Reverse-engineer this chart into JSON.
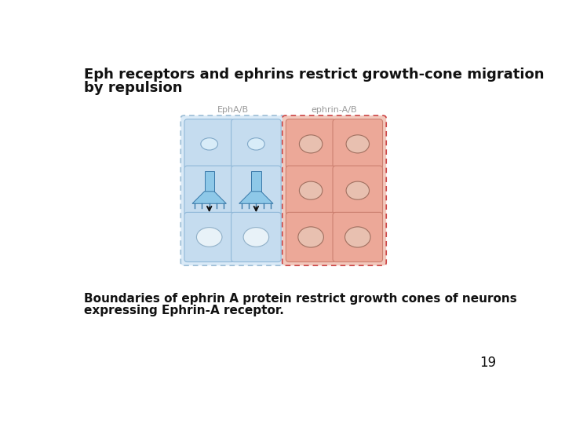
{
  "title_line1": "Eph receptors and ephrins restrict growth-cone migration",
  "title_line2": "by repulsion",
  "title_fontsize": 13,
  "subtitle_eph": "EphA/B",
  "subtitle_ephrin": "ephrin-A/B",
  "subtitle_fontsize": 8,
  "caption_line1": "Boundaries of ephrin A protein restrict growth cones of neurons",
  "caption_line2": "expressing Ephrin-A receptor.",
  "caption_fontsize": 11,
  "page_number": "19",
  "bg_color": "#ffffff",
  "blue_outer_fill": "#daeaf7",
  "blue_outer_edge": "#9bbdd6",
  "blue_cell_color": "#c5dcef",
  "blue_cell_border": "#90b8d8",
  "red_outer_fill": "#f2c8bc",
  "red_outer_edge": "#d4786a",
  "red_cell_color": "#eca898",
  "red_cell_border": "#cc8070",
  "red_dashed_edge": "#cc4444",
  "oval_white_color": "#f0f0ee",
  "oval_white_edge": "#b0b0a0",
  "oval_red_color": "#e8c0b0",
  "oval_red_edge": "#a07060",
  "growth_cone_color": "#8ec8e8",
  "growth_cone_edge": "#3878a8",
  "arrow_color": "#111111",
  "subtitle_color": "#999999",
  "title_color": "#111111",
  "caption_color": "#111111"
}
